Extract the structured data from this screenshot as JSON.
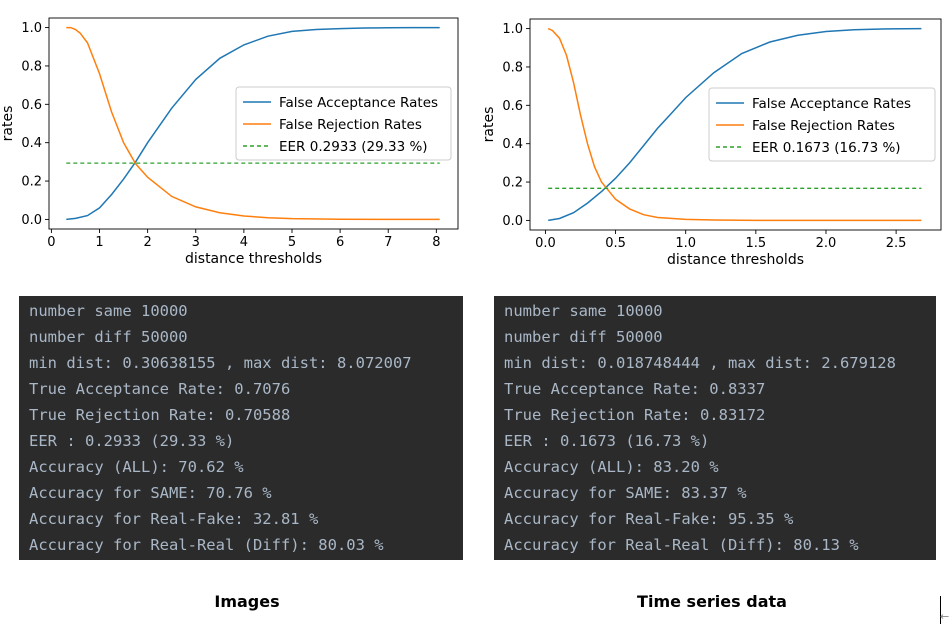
{
  "chart_data": [
    {
      "type": "line",
      "xlabel": "distance thresholds",
      "ylabel": "rates",
      "xlim": [
        -0.05,
        8.45
      ],
      "ylim": [
        -0.05,
        1.05
      ],
      "xticks": [
        0,
        1,
        2,
        3,
        4,
        5,
        6,
        7,
        8
      ],
      "yticks": [
        0.0,
        0.2,
        0.4,
        0.6,
        0.8,
        1.0
      ],
      "xtick_labels": [
        "0",
        "1",
        "2",
        "3",
        "4",
        "5",
        "6",
        "7",
        "8"
      ],
      "ytick_labels": [
        "0.0",
        "0.2",
        "0.4",
        "0.6",
        "0.8",
        "1.0"
      ],
      "legend_position": "center-right",
      "series": [
        {
          "name": "False Acceptance Rates",
          "color": "#1f77b4",
          "x": [
            0.31,
            0.5,
            0.75,
            1.0,
            1.25,
            1.5,
            1.75,
            2.0,
            2.5,
            3.0,
            3.5,
            4.0,
            4.5,
            5.0,
            5.5,
            6.0,
            6.5,
            7.0,
            7.5,
            8.07
          ],
          "y": [
            0.0,
            0.005,
            0.02,
            0.06,
            0.13,
            0.21,
            0.3,
            0.4,
            0.58,
            0.73,
            0.84,
            0.91,
            0.955,
            0.98,
            0.99,
            0.995,
            0.998,
            0.999,
            1.0,
            1.0
          ]
        },
        {
          "name": "False Rejection Rates",
          "color": "#ff7f0e",
          "x": [
            0.31,
            0.4,
            0.5,
            0.6,
            0.75,
            1.0,
            1.25,
            1.5,
            1.75,
            2.0,
            2.5,
            3.0,
            3.5,
            4.0,
            4.5,
            5.0,
            6.0,
            7.0,
            8.07
          ],
          "y": [
            1.0,
            1.0,
            0.99,
            0.97,
            0.92,
            0.76,
            0.56,
            0.4,
            0.29,
            0.22,
            0.12,
            0.065,
            0.035,
            0.018,
            0.009,
            0.004,
            0.001,
            0.0,
            0.0
          ]
        },
        {
          "name": "EER 0.2933 (29.33 %)",
          "color": "#2ca02c",
          "style": "dashed",
          "x": [
            0.31,
            8.07
          ],
          "y": [
            0.2933,
            0.2933
          ]
        }
      ]
    },
    {
      "type": "line",
      "xlabel": "distance thresholds",
      "ylabel": "rates",
      "xlim": [
        -0.11,
        2.82
      ],
      "ylim": [
        -0.05,
        1.05
      ],
      "xticks": [
        0.0,
        0.5,
        1.0,
        1.5,
        2.0,
        2.5
      ],
      "yticks": [
        0.0,
        0.2,
        0.4,
        0.6,
        0.8,
        1.0
      ],
      "xtick_labels": [
        "0.0",
        "0.5",
        "1.0",
        "1.5",
        "2.0",
        "2.5"
      ],
      "ytick_labels": [
        "0.0",
        "0.2",
        "0.4",
        "0.6",
        "0.8",
        "1.0"
      ],
      "legend_position": "center-right",
      "series": [
        {
          "name": "False Acceptance Rates",
          "color": "#1f77b4",
          "x": [
            0.02,
            0.1,
            0.2,
            0.3,
            0.4,
            0.5,
            0.6,
            0.7,
            0.8,
            0.9,
            1.0,
            1.2,
            1.4,
            1.6,
            1.8,
            2.0,
            2.2,
            2.4,
            2.68
          ],
          "y": [
            0.0,
            0.01,
            0.04,
            0.09,
            0.15,
            0.22,
            0.3,
            0.39,
            0.48,
            0.56,
            0.64,
            0.77,
            0.87,
            0.93,
            0.965,
            0.985,
            0.994,
            0.998,
            1.0
          ]
        },
        {
          "name": "False Rejection Rates",
          "color": "#ff7f0e",
          "x": [
            0.02,
            0.05,
            0.1,
            0.15,
            0.2,
            0.25,
            0.3,
            0.35,
            0.4,
            0.45,
            0.5,
            0.6,
            0.7,
            0.8,
            1.0,
            1.2,
            1.5,
            2.0,
            2.68
          ],
          "y": [
            1.0,
            0.99,
            0.95,
            0.86,
            0.72,
            0.55,
            0.4,
            0.28,
            0.2,
            0.155,
            0.11,
            0.06,
            0.03,
            0.015,
            0.005,
            0.002,
            0.0,
            0.0,
            0.0
          ]
        },
        {
          "name": "EER 0.1673 (16.73 %)",
          "color": "#2ca02c",
          "style": "dashed",
          "x": [
            0.02,
            2.68
          ],
          "y": [
            0.1673,
            0.1673
          ]
        }
      ]
    }
  ],
  "consoles": {
    "left": {
      "line1": "number same 10000",
      "line2": "number diff 50000",
      "line3": "min dist: 0.30638155 , max dist: 8.072007",
      "line4": "True Acceptance Rate: 0.7076",
      "line5": "True Rejection Rate: 0.70588",
      "line6": "EER : 0.2933 (29.33 %)",
      "line7": "Accuracy (ALL): 70.62 %",
      "line8": "Accuracy for SAME: 70.76 %",
      "line9_prefix": "Accuracy for ",
      "line9_highlight": "Real-Fake: 32.81 %",
      "line10": "Accuracy for Real-Real (Diff): 80.03 %"
    },
    "right": {
      "line1": "number same 10000",
      "line2": "number diff 50000",
      "line3": "min dist: 0.018748444 , max dist: 2.679128",
      "line4": "True Acceptance Rate: 0.8337",
      "line5": "True Rejection Rate: 0.83172",
      "line6": "EER : 0.1673 (16.73 %)",
      "line7": "Accuracy (ALL): 83.20 %",
      "line8": "Accuracy for SAME: 83.37 %",
      "line9_prefix": "Accuracy for ",
      "line9_highlight": "Real-Fake: 95.35 %",
      "line10": "Accuracy for Real-Real (Diff): 80.13 %"
    }
  },
  "captions": {
    "left": "Images",
    "right": "Time series data"
  },
  "colors": {
    "console_bg": "#2b2b2b",
    "console_text": "#a9b7c6",
    "underline": "#e3201b"
  }
}
